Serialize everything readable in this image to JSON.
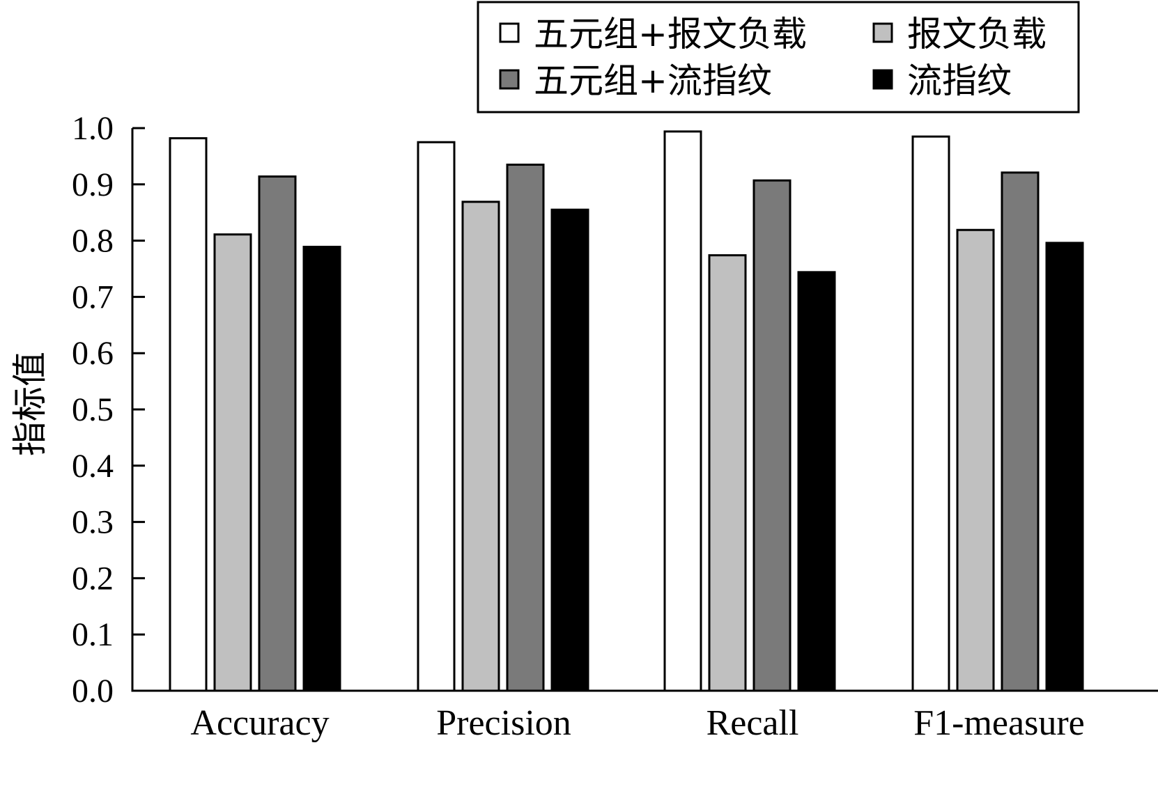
{
  "chart_data": {
    "type": "bar",
    "title": "",
    "xlabel": "",
    "ylabel": "指标值",
    "ylim": [
      0,
      1.0
    ],
    "yticks": [
      "0.0",
      "0.1",
      "0.2",
      "0.3",
      "0.4",
      "0.5",
      "0.6",
      "0.7",
      "0.8",
      "0.9",
      "1.0"
    ],
    "grid": false,
    "legend_position": "top-right",
    "categories": [
      "Accuracy",
      "Precision",
      "Recall",
      "F1-measure"
    ],
    "series": [
      {
        "name": "五元组+报文负载",
        "color": "#ffffff",
        "values": [
          0.982,
          0.975,
          0.994,
          0.985
        ]
      },
      {
        "name": "报文负载",
        "color": "#c0c0c0",
        "values": [
          0.811,
          0.869,
          0.774,
          0.819
        ]
      },
      {
        "name": "五元组+流指纹",
        "color": "#7a7a7a",
        "values": [
          0.914,
          0.935,
          0.907,
          0.921
        ]
      },
      {
        "name": "流指纹",
        "color": "#000000",
        "values": [
          0.789,
          0.855,
          0.744,
          0.796
        ]
      }
    ]
  }
}
